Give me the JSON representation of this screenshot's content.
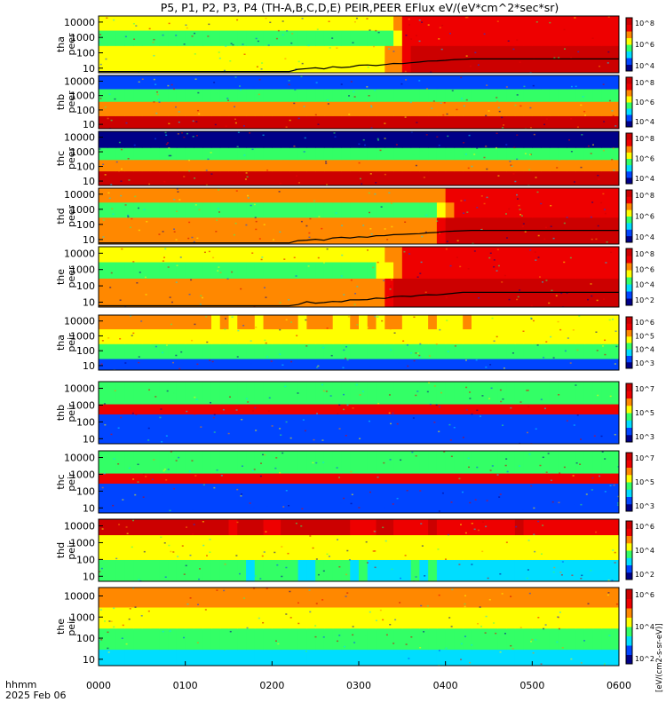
{
  "title": "P5, P1, P2, P3, P4 (TH-A,B,C,D,E) PEIR,PEER EFlux eV/(eV*cm^2*sec*sr)",
  "footer": {
    "time_label": "hhmm",
    "date_label": "2025 Feb 06"
  },
  "colorbar_unit": "[eV/(cm2-s-sr-eV)]",
  "colors": {
    "background": "#ffffff",
    "frame": "#000000"
  },
  "chart_data": {
    "type": "heatmap",
    "x_ticks": [
      "0000",
      "0100",
      "0200",
      "0300",
      "0400",
      "0500",
      "0600"
    ],
    "x_range": [
      "0000",
      "0600"
    ],
    "y_scale": "log",
    "y_range": [
      5,
      25000
    ],
    "y_ticks": [
      "10",
      "100",
      "1000",
      "10000"
    ],
    "colormap": [
      "#000088",
      "#0044ff",
      "#00ddff",
      "#33ff66",
      "#ffff00",
      "#ff8800",
      "#ee0000",
      "#cc0000"
    ],
    "panels": [
      {
        "probe": "tha",
        "species": "peer",
        "colorbar_ticks": [
          "10^8",
          "10^6",
          "10^4"
        ],
        "trace": true,
        "bands": [
          {
            "y_lo": 5,
            "y_hi": 300,
            "levels_t": [
              [
                0,
                4
              ],
              [
                3.3,
                4
              ],
              [
                3.6,
                7
              ],
              [
                6,
                7
              ]
            ]
          },
          {
            "y_lo": 300,
            "y_hi": 3000,
            "levels_t": [
              [
                0,
                3
              ],
              [
                3.3,
                3
              ],
              [
                3.6,
                6
              ],
              [
                6,
                6
              ]
            ]
          },
          {
            "y_lo": 3000,
            "y_hi": 25000,
            "levels_t": [
              [
                0,
                4
              ],
              [
                3.3,
                4
              ],
              [
                3.6,
                6
              ],
              [
                6,
                6
              ]
            ]
          }
        ]
      },
      {
        "probe": "thb",
        "species": "peer",
        "colorbar_ticks": [
          "10^8",
          "10^6",
          "10^4"
        ],
        "trace": false,
        "bands": [
          {
            "y_lo": 5,
            "y_hi": 40,
            "levels_t": [
              [
                0,
                7
              ],
              [
                6,
                7
              ]
            ]
          },
          {
            "y_lo": 40,
            "y_hi": 400,
            "levels_t": [
              [
                0,
                5
              ],
              [
                6,
                5
              ]
            ]
          },
          {
            "y_lo": 400,
            "y_hi": 3000,
            "levels_t": [
              [
                0,
                3
              ],
              [
                6,
                3
              ]
            ]
          },
          {
            "y_lo": 3000,
            "y_hi": 25000,
            "levels_t": [
              [
                0,
                1
              ],
              [
                6,
                1
              ]
            ]
          }
        ]
      },
      {
        "probe": "thc",
        "species": "peer",
        "colorbar_ticks": [
          "10^8",
          "10^6",
          "10^4"
        ],
        "trace": false,
        "bands": [
          {
            "y_lo": 5,
            "y_hi": 50,
            "levels_t": [
              [
                0,
                7
              ],
              [
                6,
                7
              ]
            ]
          },
          {
            "y_lo": 50,
            "y_hi": 300,
            "levels_t": [
              [
                0,
                5
              ],
              [
                6,
                5
              ]
            ]
          },
          {
            "y_lo": 300,
            "y_hi": 2000,
            "levels_t": [
              [
                0,
                3
              ],
              [
                6,
                3
              ]
            ]
          },
          {
            "y_lo": 2000,
            "y_hi": 25000,
            "levels_t": [
              [
                0,
                0
              ],
              [
                6,
                0
              ]
            ]
          }
        ]
      },
      {
        "probe": "thd",
        "species": "peer",
        "colorbar_ticks": [
          "10^8",
          "10^6",
          "10^4"
        ],
        "trace": true,
        "bands": [
          {
            "y_lo": 5,
            "y_hi": 300,
            "levels_t": [
              [
                0,
                5
              ],
              [
                3.9,
                5
              ],
              [
                4.1,
                7
              ],
              [
                6,
                7
              ]
            ]
          },
          {
            "y_lo": 300,
            "y_hi": 3000,
            "levels_t": [
              [
                0,
                3
              ],
              [
                3.9,
                3
              ],
              [
                4.1,
                6
              ],
              [
                6,
                6
              ]
            ]
          },
          {
            "y_lo": 3000,
            "y_hi": 25000,
            "levels_t": [
              [
                0,
                5
              ],
              [
                3.9,
                5
              ],
              [
                4.1,
                6
              ],
              [
                6,
                6
              ]
            ]
          }
        ]
      },
      {
        "probe": "the",
        "species": "peer",
        "colorbar_ticks": [
          "10^8",
          "10^6",
          "10^4",
          "10^2"
        ],
        "trace": true,
        "bands": [
          {
            "y_lo": 5,
            "y_hi": 300,
            "levels_t": [
              [
                0,
                5
              ],
              [
                3.2,
                5
              ],
              [
                3.5,
                7
              ],
              [
                6,
                7
              ]
            ]
          },
          {
            "y_lo": 300,
            "y_hi": 3000,
            "levels_t": [
              [
                0,
                3
              ],
              [
                3.2,
                3
              ],
              [
                3.5,
                6
              ],
              [
                6,
                6
              ]
            ]
          },
          {
            "y_lo": 3000,
            "y_hi": 25000,
            "levels_t": [
              [
                0,
                4
              ],
              [
                3.2,
                4
              ],
              [
                3.5,
                6
              ],
              [
                6,
                6
              ]
            ]
          }
        ]
      },
      {
        "probe": "tha",
        "species": "peir",
        "colorbar_ticks": [
          "10^6",
          "10^5",
          "10^4",
          "10^3"
        ],
        "trace": false,
        "bands": [
          {
            "y_lo": 5,
            "y_hi": 30,
            "levels_t": [
              [
                0,
                1
              ],
              [
                6,
                1
              ]
            ]
          },
          {
            "y_lo": 30,
            "y_hi": 300,
            "levels_t": [
              [
                0,
                3
              ],
              [
                6,
                3
              ]
            ]
          },
          {
            "y_lo": 300,
            "y_hi": 3000,
            "levels_t": [
              [
                0,
                4
              ],
              [
                6,
                4
              ]
            ]
          },
          {
            "y_lo": 3000,
            "y_hi": 25000,
            "levels_t": [
              [
                0,
                5
              ],
              [
                6,
                4
              ]
            ]
          }
        ]
      },
      {
        "probe": "thb",
        "species": "peir",
        "colorbar_ticks": [
          "10^7",
          "10^5",
          "10^3"
        ],
        "trace": false,
        "bands": [
          {
            "y_lo": 5,
            "y_hi": 300,
            "levels_t": [
              [
                0,
                1
              ],
              [
                6,
                1
              ]
            ]
          },
          {
            "y_lo": 300,
            "y_hi": 1200,
            "levels_t": [
              [
                0,
                6
              ],
              [
                6,
                6
              ]
            ]
          },
          {
            "y_lo": 1200,
            "y_hi": 25000,
            "levels_t": [
              [
                0,
                3
              ],
              [
                6,
                3
              ]
            ]
          }
        ]
      },
      {
        "probe": "thc",
        "species": "peir",
        "colorbar_ticks": [
          "10^7",
          "10^5",
          "10^3"
        ],
        "trace": false,
        "bands": [
          {
            "y_lo": 5,
            "y_hi": 300,
            "levels_t": [
              [
                0,
                1
              ],
              [
                6,
                1
              ]
            ]
          },
          {
            "y_lo": 300,
            "y_hi": 1200,
            "levels_t": [
              [
                0,
                6
              ],
              [
                6,
                6
              ]
            ]
          },
          {
            "y_lo": 1200,
            "y_hi": 25000,
            "levels_t": [
              [
                0,
                3
              ],
              [
                6,
                3
              ]
            ]
          }
        ]
      },
      {
        "probe": "thd",
        "species": "peir",
        "colorbar_ticks": [
          "10^6",
          "10^4",
          "10^2"
        ],
        "trace": false,
        "bands": [
          {
            "y_lo": 5,
            "y_hi": 100,
            "levels_t": [
              [
                0,
                3
              ],
              [
                6,
                2
              ]
            ]
          },
          {
            "y_lo": 100,
            "y_hi": 3000,
            "levels_t": [
              [
                0,
                4
              ],
              [
                6,
                4
              ]
            ]
          },
          {
            "y_lo": 3000,
            "y_hi": 25000,
            "levels_t": [
              [
                0,
                7
              ],
              [
                6,
                6
              ]
            ]
          }
        ]
      },
      {
        "probe": "the",
        "species": "peir",
        "colorbar_ticks": [
          "10^6",
          "10^4",
          "10^2"
        ],
        "trace": false,
        "bands": [
          {
            "y_lo": 5,
            "y_hi": 30,
            "levels_t": [
              [
                0,
                2
              ],
              [
                6,
                2
              ]
            ]
          },
          {
            "y_lo": 30,
            "y_hi": 300,
            "levels_t": [
              [
                0,
                3
              ],
              [
                6,
                3
              ]
            ]
          },
          {
            "y_lo": 300,
            "y_hi": 3000,
            "levels_t": [
              [
                0,
                4
              ],
              [
                6,
                4
              ]
            ]
          },
          {
            "y_lo": 3000,
            "y_hi": 25000,
            "levels_t": [
              [
                0,
                5
              ],
              [
                6,
                5
              ]
            ]
          }
        ]
      }
    ]
  }
}
